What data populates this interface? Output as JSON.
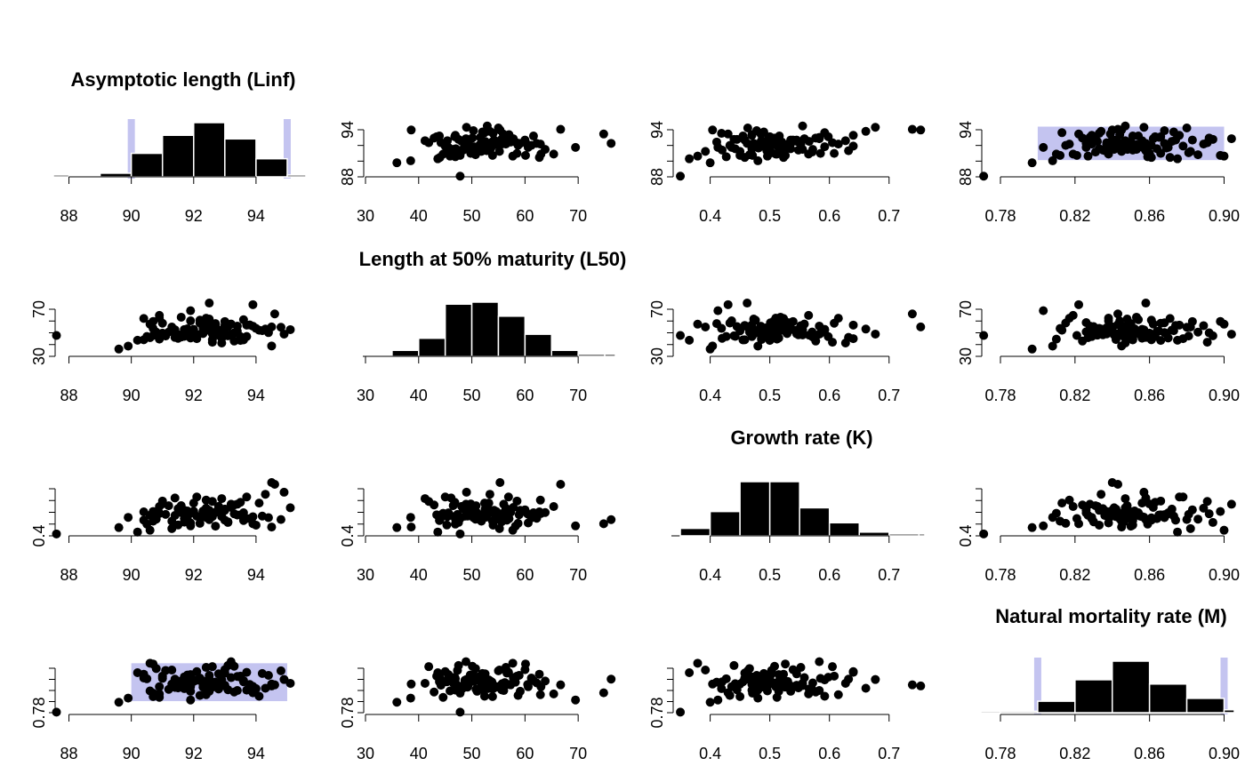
{
  "chart_data": {
    "type": "scatter",
    "layout": "4x4 pairs plot: diagonal = marginal histograms, off-diagonal = pairwise scatter",
    "colors": {
      "points": "#000000",
      "bars": "#000000",
      "bar_border": "#ffffff",
      "highlight": "#c4c4f0"
    },
    "variables": [
      {
        "key": "linf",
        "title": "Asymptotic length (Linf)",
        "range": [
          87.5,
          95.6
        ],
        "ticks": [
          88,
          90,
          92,
          94
        ],
        "tick_labels": [
          "88",
          "90",
          "92",
          "94"
        ],
        "y_tick_labels": [
          "88",
          "",
          "",
          "94"
        ],
        "bounds": [
          90,
          95
        ],
        "values": [
          87.6,
          89.6,
          89.9,
          90.9,
          91.5,
          90.2,
          92.5,
          93.1,
          90.9,
          94.1,
          90.4,
          91.3,
          92.9,
          93.7,
          90.4,
          91.9,
          94.9,
          91.4,
          92.4,
          93.9,
          91.0,
          92.6,
          90.6,
          92.8,
          93.6,
          90.7,
          92.1,
          94.5,
          91.8,
          93.4,
          90.8,
          93.0,
          90.5,
          92.4,
          94.2,
          91.5,
          92.7,
          90.7,
          93.3,
          91.7,
          94.6,
          91.1,
          93.1,
          92.0,
          90.9,
          94.4,
          91.9,
          93.7,
          92.3,
          90.6,
          93.2,
          91.3,
          92.6,
          94.0,
          91.6,
          90.7,
          92.8,
          93.9,
          91.4,
          92.3,
          94.8,
          91.2,
          93.5,
          92.2,
          91.8,
          92.6,
          93.5,
          92.5,
          91.9,
          93.0,
          91.6,
          92.9,
          94.3,
          92.5,
          91.7,
          93.0,
          92.4,
          91.0,
          92.7,
          93.6,
          92.3,
          93.4,
          91.6,
          92.5,
          93.3,
          94.5,
          92.1,
          91.7,
          92.2,
          95.1,
          91.9,
          93.8,
          92.0,
          92.5,
          93.2,
          92.6,
          91.8,
          93.0,
          92.4,
          92.3,
          92.7
        ]
      },
      {
        "key": "l50",
        "title": "Length at 50% maturity (L50)",
        "range": [
          29.5,
          77.0
        ],
        "ticks": [
          30,
          40,
          50,
          60,
          70
        ],
        "tick_labels": [
          "30",
          "40",
          "50",
          "60",
          "70"
        ],
        "y_tick_labels": [
          "30",
          "",
          "",
          "",
          "70"
        ],
        "bounds": null,
        "values": [
          47.8,
          35.9,
          38.5,
          65.4,
          45.3,
          43.6,
          59.1,
          47.5,
          63.0,
          52.4,
          44.0,
          55.2,
          41.2,
          46.9,
          62.7,
          69.5,
          49.0,
          52.8,
          56.4,
          74.8,
          58.5,
          44.2,
          57.7,
          48.1,
          61.6,
          53.9,
          45.0,
          38.6,
          49.7,
          56.0,
          50.7,
          54.2,
          46.9,
          62.9,
          52.0,
          48.4,
          58.2,
          60.1,
          42.9,
          51.3,
          66.7,
          47.3,
          55.6,
          53.2,
          44.6,
          50.3,
          60.6,
          56.9,
          49.5,
          45.9,
          57.8,
          51.8,
          41.9,
          54.0,
          63.8,
          47.8,
          52.5,
          55.9,
          46.1,
          60.5,
          55.0,
          50.8,
          43.4,
          58.7,
          53.6,
          49.2,
          46.8,
          62.2,
          51.0,
          56.6,
          48.3,
          45.4,
          53.4,
          58.9,
          47.0,
          60.0,
          52.2,
          49.8,
          57.3,
          43.9,
          54.6,
          51.6,
          46.5,
          76.2,
          50.1,
          55.3,
          48.7,
          53.0,
          61.2,
          52.9,
          45.6,
          57.0,
          50.4,
          54.4,
          48.9,
          56.2,
          52.7,
          49.3,
          55.7,
          51.5,
          53.8
        ]
      },
      {
        "key": "k",
        "title": "Growth rate (K)",
        "range": [
          0.335,
          0.76
        ],
        "ticks": [
          0.4,
          0.5,
          0.6,
          0.7
        ],
        "tick_labels": [
          "0.4",
          "0.5",
          "0.6",
          "0.7"
        ],
        "y_tick_labels": [
          "0.4",
          "",
          "",
          "",
          ""
        ],
        "bounds": null,
        "values": [
          0.35,
          0.4,
          0.48,
          0.565,
          0.42,
          0.365,
          0.535,
          0.44,
          0.51,
          0.592,
          0.458,
          0.392,
          0.627,
          0.47,
          0.523,
          0.413,
          0.677,
          0.495,
          0.552,
          0.43,
          0.608,
          0.486,
          0.379,
          0.566,
          0.516,
          0.45,
          0.64,
          0.404,
          0.5,
          0.583,
          0.466,
          0.535,
          0.427,
          0.615,
          0.49,
          0.548,
          0.411,
          0.526,
          0.577,
          0.47,
          0.739,
          0.503,
          0.445,
          0.592,
          0.512,
          0.478,
          0.436,
          0.64,
          0.529,
          0.496,
          0.558,
          0.45,
          0.605,
          0.419,
          0.518,
          0.471,
          0.545,
          0.485,
          0.632,
          0.507,
          0.463,
          0.571,
          0.5,
          0.433,
          0.53,
          0.49,
          0.598,
          0.473,
          0.515,
          0.458,
          0.555,
          0.486,
          0.661,
          0.501,
          0.442,
          0.539,
          0.48,
          0.585,
          0.52,
          0.455,
          0.526,
          0.498,
          0.572,
          0.462,
          0.508,
          0.753,
          0.489,
          0.535,
          0.476,
          0.555,
          0.515,
          0.47,
          0.528,
          0.493,
          0.583,
          0.505,
          0.481,
          0.545,
          0.509,
          0.496,
          0.52
        ]
      },
      {
        "key": "m",
        "title": "Natural mortality rate (M)",
        "range": [
          0.7695,
          0.9055
        ],
        "ticks": [
          0.78,
          0.82,
          0.86,
          0.9
        ],
        "tick_labels": [
          "0.78",
          "0.82",
          "0.86",
          "0.90"
        ],
        "y_tick_labels": [
          "0.78",
          "",
          "",
          "",
          ""
        ],
        "bounds": [
          0.8,
          0.9
        ],
        "values": [
          0.771,
          0.797,
          0.808,
          0.819,
          0.851,
          0.875,
          0.826,
          0.894,
          0.838,
          0.813,
          0.861,
          0.882,
          0.847,
          0.829,
          0.871,
          0.803,
          0.857,
          0.836,
          0.889,
          0.822,
          0.866,
          0.842,
          0.9,
          0.832,
          0.854,
          0.812,
          0.878,
          0.845,
          0.869,
          0.828,
          0.886,
          0.84,
          0.859,
          0.817,
          0.873,
          0.835,
          0.85,
          0.898,
          0.824,
          0.864,
          0.843,
          0.881,
          0.83,
          0.856,
          0.81,
          0.868,
          0.838,
          0.876,
          0.849,
          0.827,
          0.862,
          0.845,
          0.891,
          0.833,
          0.853,
          0.821,
          0.872,
          0.839,
          0.858,
          0.844,
          0.88,
          0.831,
          0.866,
          0.815,
          0.852,
          0.837,
          0.863,
          0.848,
          0.826,
          0.874,
          0.841,
          0.856,
          0.834,
          0.868,
          0.846,
          0.883,
          0.829,
          0.86,
          0.843,
          0.851,
          0.837,
          0.865,
          0.848,
          0.858,
          0.892,
          0.84,
          0.855,
          0.833,
          0.861,
          0.847,
          0.87,
          0.844,
          0.852,
          0.839,
          0.904,
          0.849,
          0.857,
          0.842,
          0.846,
          0.853,
          0.85
        ]
      }
    ]
  }
}
